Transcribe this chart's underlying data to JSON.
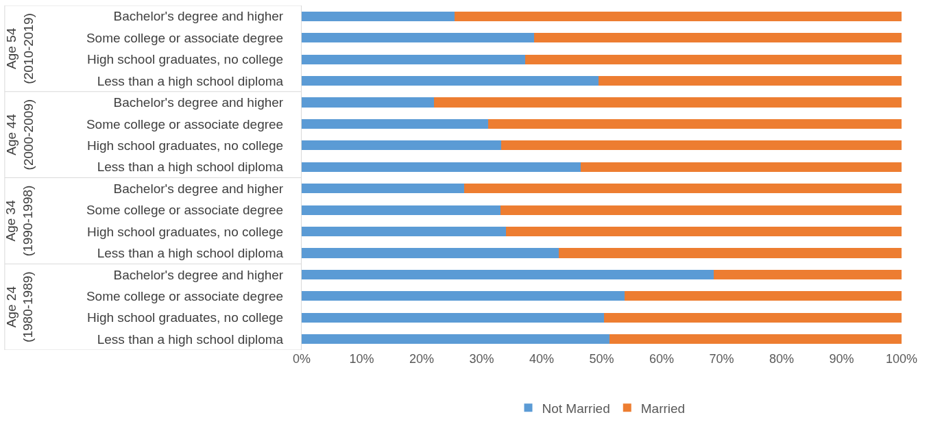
{
  "chart_data": {
    "type": "bar",
    "orientation": "horizontal",
    "stacked": true,
    "categories": [
      "Bachelor's degree and higher",
      "Some college or associate degree",
      "High school graduates, no college",
      "Less than a high school diploma",
      "Bachelor's degree and higher",
      "Some college or associate degree",
      "High school graduates, no college",
      "Less than a high school diploma",
      "Bachelor's degree and higher",
      "Some college or associate degree",
      "High school graduates, no college",
      "Less than a high school diploma",
      "Bachelor's degree and higher",
      "Some college or associate degree",
      "High school graduates, no college",
      "Less than a high school diploma"
    ],
    "series": [
      {
        "name": "Not Married",
        "color": "#5b9bd5",
        "values": [
          25.5,
          38.7,
          37.3,
          49.5,
          22.1,
          31.1,
          33.3,
          46.5,
          27.1,
          33.1,
          34.1,
          42.9,
          68.7,
          53.8,
          50.4,
          51.3
        ]
      },
      {
        "name": "Married",
        "color": "#ed7d31",
        "values": [
          74.5,
          61.3,
          62.7,
          50.5,
          77.9,
          68.9,
          66.7,
          53.5,
          72.9,
          66.9,
          65.9,
          57.1,
          31.3,
          46.2,
          49.6,
          48.7
        ]
      }
    ],
    "xlim": [
      0,
      100
    ],
    "xticks": [
      {
        "value": 0,
        "label": "0%"
      },
      {
        "value": 10,
        "label": "10%"
      },
      {
        "value": 20,
        "label": "20%"
      },
      {
        "value": 30,
        "label": "30%"
      },
      {
        "value": 40,
        "label": "40%"
      },
      {
        "value": 50,
        "label": "50%"
      },
      {
        "value": 60,
        "label": "60%"
      },
      {
        "value": 70,
        "label": "70%"
      },
      {
        "value": 80,
        "label": "80%"
      },
      {
        "value": 90,
        "label": "90%"
      },
      {
        "value": 100,
        "label": "100%"
      }
    ],
    "annotations": [
      "Age 54\n(2010-2019)",
      "Age 44\n(2000-2009)",
      "Age 34\n(1990-1998)",
      "Age 24\n(1980-1989)"
    ],
    "grid": false,
    "legend": "bottom"
  }
}
